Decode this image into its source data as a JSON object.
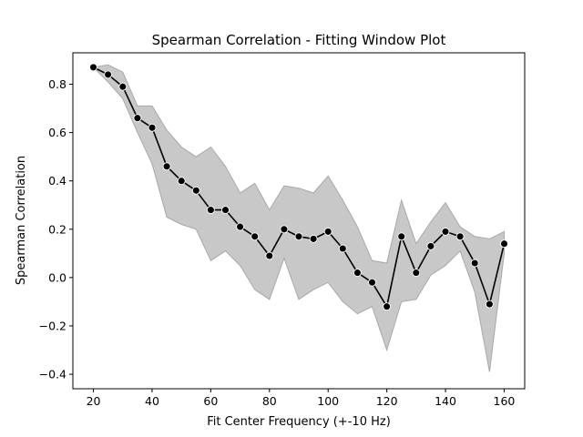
{
  "chart_data": {
    "type": "line",
    "title": "Spearman Correlation - Fitting Window Plot",
    "xlabel": "Fit Center Frequency (+-10 Hz)",
    "ylabel": "Spearman Correlation",
    "xlim": [
      13,
      167
    ],
    "ylim": [
      -0.46,
      0.93
    ],
    "xticks": [
      20,
      40,
      60,
      80,
      100,
      120,
      140,
      160
    ],
    "yticks": [
      -0.4,
      -0.2,
      0.0,
      0.2,
      0.4,
      0.6,
      0.8
    ],
    "ytick_labels": [
      "−0.4",
      "−0.2",
      "0.0",
      "0.2",
      "0.4",
      "0.6",
      "0.8"
    ],
    "grid": false,
    "colors": {
      "line": "#000000",
      "band": "#c8c8c8",
      "band_edge": "#a8a8a8",
      "marker_edge": "#ffffff"
    },
    "x": [
      20,
      25,
      30,
      35,
      40,
      45,
      50,
      55,
      60,
      65,
      70,
      75,
      80,
      85,
      90,
      95,
      100,
      105,
      110,
      115,
      120,
      125,
      130,
      135,
      140,
      145,
      150,
      155,
      160
    ],
    "series": [
      {
        "values": [
          0.87,
          0.84,
          0.79,
          0.66,
          0.62,
          0.46,
          0.4,
          0.36,
          0.28,
          0.28,
          0.21,
          0.17,
          0.09,
          0.2,
          0.17,
          0.16,
          0.19,
          0.12,
          0.02,
          -0.02,
          -0.12,
          0.17,
          0.02,
          0.13,
          0.19,
          0.17,
          0.06,
          -0.11,
          0.14
        ],
        "upper": [
          0.87,
          0.88,
          0.85,
          0.71,
          0.71,
          0.61,
          0.54,
          0.5,
          0.54,
          0.46,
          0.35,
          0.39,
          0.28,
          0.38,
          0.37,
          0.35,
          0.42,
          0.32,
          0.21,
          0.07,
          0.06,
          0.32,
          0.14,
          0.23,
          0.31,
          0.21,
          0.17,
          0.16,
          0.19
        ],
        "lower": [
          0.87,
          0.81,
          0.74,
          0.6,
          0.47,
          0.25,
          0.22,
          0.2,
          0.07,
          0.11,
          0.05,
          -0.05,
          -0.09,
          0.08,
          -0.09,
          -0.05,
          -0.02,
          -0.1,
          -0.15,
          -0.12,
          -0.3,
          -0.1,
          -0.09,
          0.01,
          0.05,
          0.11,
          -0.06,
          -0.39,
          0.1
        ]
      }
    ]
  }
}
